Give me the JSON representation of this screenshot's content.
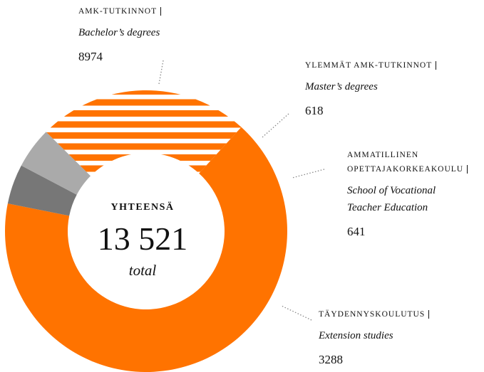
{
  "chart_data": {
    "type": "donut",
    "categories": [
      "AMK-TUTKINNOT",
      "YLEMMÄT AMK-TUTKINNOT",
      "AMMATILLINEN OPETTAJAKORKEAKOULU",
      "TÄYDENNYSKOULUTUS"
    ],
    "subtitles": [
      "Bachelor’s degrees",
      "Master’s degrees",
      "School of Vocational Teacher Education",
      "Extension studies"
    ],
    "values": [
      8974,
      618,
      641,
      3288
    ],
    "colors": [
      "#ff7300",
      "#777777",
      "#aaaaaa",
      "#ff7300"
    ],
    "hatched": [
      false,
      false,
      false,
      true
    ],
    "center_title": "YHTEENSÄ",
    "center_value": "13 521",
    "center_caption": "total"
  }
}
